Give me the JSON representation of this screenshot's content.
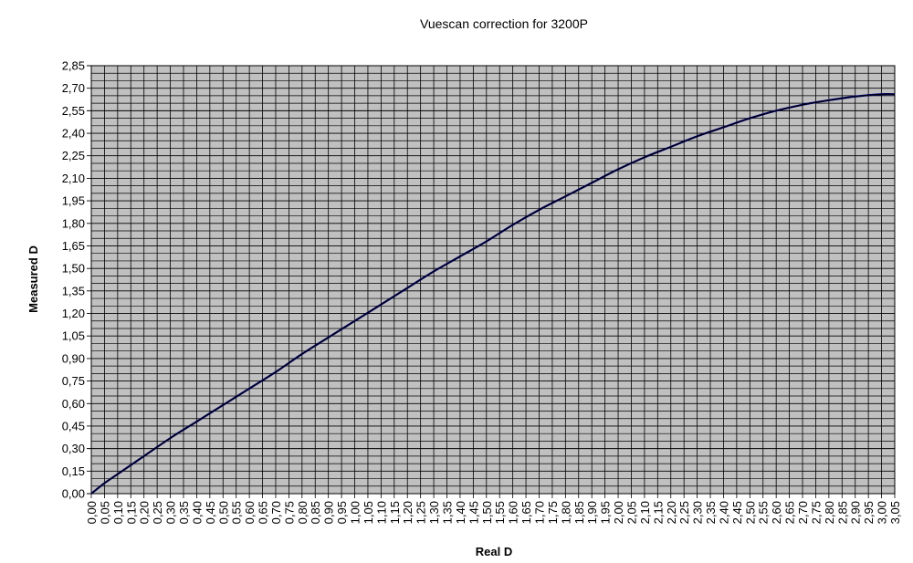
{
  "chart_data": {
    "type": "line",
    "title": "Vuescan correction for 3200P",
    "xlabel": "Real D",
    "ylabel": "Measured D",
    "xlim": [
      0,
      3.05
    ],
    "ylim": [
      0,
      2.85
    ],
    "x_ticks": [
      "0,00",
      "0,05",
      "0,10",
      "0,15",
      "0,20",
      "0,25",
      "0,30",
      "0,35",
      "0,40",
      "0,45",
      "0,50",
      "0,55",
      "0,60",
      "0,65",
      "0,70",
      "0,75",
      "0,80",
      "0,85",
      "0,90",
      "0,95",
      "1,00",
      "1,05",
      "1,10",
      "1,15",
      "1,20",
      "1,25",
      "1,30",
      "1,35",
      "1,40",
      "1,45",
      "1,50",
      "1,55",
      "1,60",
      "1,65",
      "1,70",
      "1,75",
      "1,80",
      "1,85",
      "1,90",
      "1,95",
      "2,00",
      "2,05",
      "2,10",
      "2,15",
      "2,20",
      "2,25",
      "2,30",
      "2,35",
      "2,40",
      "2,45",
      "2,50",
      "2,55",
      "2,60",
      "2,65",
      "2,70",
      "2,75",
      "2,80",
      "2,85",
      "2,90",
      "2,95",
      "3,00",
      "3,05"
    ],
    "y_ticks": [
      "0,00",
      "0,15",
      "0,30",
      "0,45",
      "0,60",
      "0,75",
      "0,90",
      "1,05",
      "1,20",
      "1,35",
      "1,50",
      "1,65",
      "1,80",
      "1,95",
      "2,10",
      "2,25",
      "2,40",
      "2,55",
      "2,70",
      "2,85"
    ],
    "grid": true,
    "legend": "none",
    "colors": {
      "plot_background": "#c0c0c0",
      "grid": "#000000",
      "line": "#000080",
      "line_overlay": "#000000"
    },
    "series": [
      {
        "x": [
          0.0,
          0.05,
          0.1,
          0.2,
          0.3,
          0.4,
          0.5,
          0.6,
          0.7,
          0.8,
          0.9,
          1.0,
          1.1,
          1.2,
          1.3,
          1.4,
          1.5,
          1.6,
          1.7,
          1.8,
          1.9,
          2.0,
          2.1,
          2.2,
          2.3,
          2.4,
          2.5,
          2.6,
          2.7,
          2.8,
          2.9,
          3.0,
          3.05
        ],
        "y": [
          0.0,
          0.07,
          0.13,
          0.25,
          0.37,
          0.48,
          0.59,
          0.7,
          0.81,
          0.93,
          1.04,
          1.15,
          1.26,
          1.37,
          1.48,
          1.58,
          1.68,
          1.79,
          1.89,
          1.98,
          2.07,
          2.16,
          2.24,
          2.31,
          2.38,
          2.44,
          2.5,
          2.55,
          2.59,
          2.62,
          2.645,
          2.66,
          2.66
        ]
      }
    ]
  }
}
